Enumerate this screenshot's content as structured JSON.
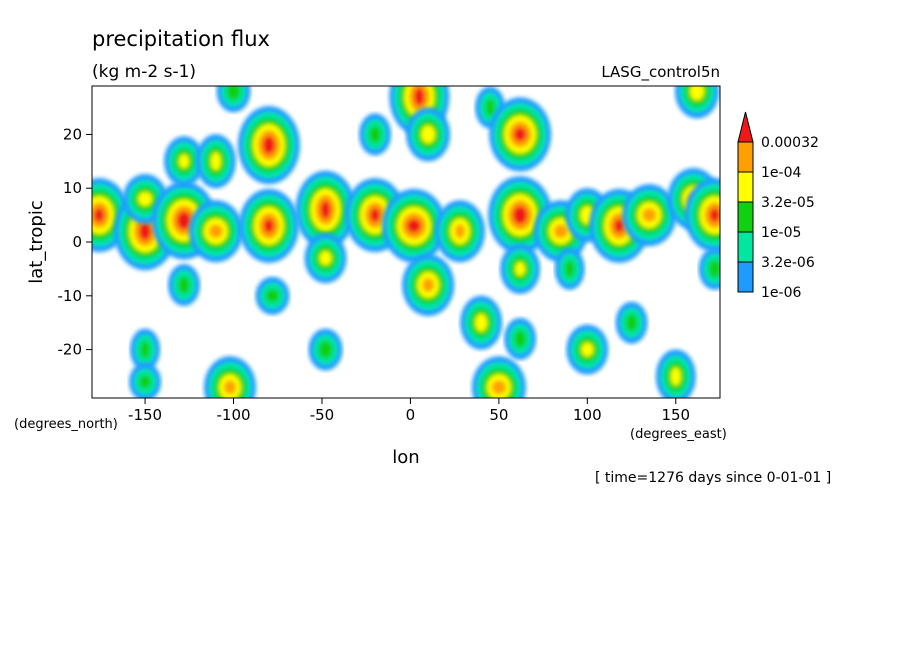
{
  "chart_data": {
    "type": "heatmap",
    "title": "precipitation flux",
    "units": "(kg m-2 s-1)",
    "dataset": "LASG_control5n",
    "xlabel": "lon",
    "ylabel": "lat_tropic",
    "x_unit_label": "(degrees_east)",
    "y_unit_label": "(degrees_north)",
    "time_label": "[ time=1276 days since 0-01-01 ]",
    "xlim": [
      -180,
      175
    ],
    "ylim": [
      -29,
      29
    ],
    "x_ticks": [
      -150,
      -100,
      -50,
      0,
      50,
      100,
      150
    ],
    "x_tick_labels": [
      "-150",
      "-100",
      "-50",
      "0",
      "50",
      "100",
      "150"
    ],
    "y_ticks": [
      -20,
      -10,
      0,
      10,
      20
    ],
    "y_tick_labels": [
      "-20",
      "-10",
      "0",
      "10",
      "20"
    ],
    "levels": [
      1e-06,
      3.2e-06,
      1e-05,
      3.2e-05,
      0.0001,
      0.00032
    ],
    "colorbar_labels": [
      "0.00032",
      "1e-04",
      "3.2e-05",
      "1e-05",
      "3.2e-06",
      "1e-06"
    ],
    "colors": [
      "#1e9bff",
      "#00e8a0",
      "#10d010",
      "#ffff00",
      "#ffa000",
      "#f01818"
    ],
    "colorbar_position": "right",
    "cells": [
      [
        -176,
        5,
        5
      ],
      [
        -150,
        2,
        5
      ],
      [
        -150,
        8,
        3
      ],
      [
        -150,
        -20,
        2
      ],
      [
        -150,
        -26,
        2
      ],
      [
        -128,
        4,
        5
      ],
      [
        -128,
        15,
        3
      ],
      [
        -128,
        -8,
        2
      ],
      [
        -110,
        2,
        4
      ],
      [
        -110,
        15,
        3
      ],
      [
        -102,
        -27,
        4
      ],
      [
        -100,
        28,
        2
      ],
      [
        -80,
        3,
        5
      ],
      [
        -80,
        18,
        5
      ],
      [
        -78,
        -10,
        2
      ],
      [
        -48,
        6,
        5
      ],
      [
        -48,
        -3,
        3
      ],
      [
        -48,
        -20,
        2
      ],
      [
        -20,
        5,
        5
      ],
      [
        -20,
        20,
        2
      ],
      [
        2,
        3,
        5
      ],
      [
        5,
        27,
        5
      ],
      [
        10,
        -8,
        4
      ],
      [
        10,
        20,
        3
      ],
      [
        28,
        2,
        4
      ],
      [
        40,
        -15,
        3
      ],
      [
        50,
        -27,
        4
      ],
      [
        45,
        25,
        2
      ],
      [
        62,
        20,
        5
      ],
      [
        62,
        5,
        5
      ],
      [
        62,
        -5,
        3
      ],
      [
        62,
        -18,
        2
      ],
      [
        85,
        2,
        4
      ],
      [
        90,
        -5,
        2
      ],
      [
        100,
        -20,
        3
      ],
      [
        100,
        5,
        3
      ],
      [
        118,
        3,
        5
      ],
      [
        125,
        -15,
        2
      ],
      [
        135,
        5,
        4
      ],
      [
        150,
        -25,
        3
      ],
      [
        160,
        8,
        4
      ],
      [
        162,
        28,
        3
      ],
      [
        172,
        5,
        5
      ],
      [
        172,
        -5,
        2
      ]
    ]
  }
}
